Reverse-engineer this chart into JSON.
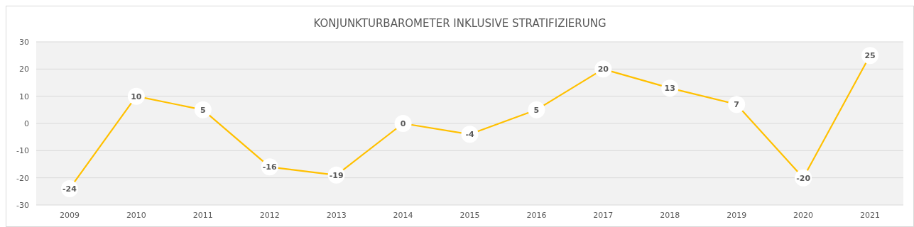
{
  "chart_data": {
    "type": "line",
    "title": "KONJUNKTURBAROMETER INKLUSIVE STRATIFIZIERUNG",
    "categories": [
      "2009",
      "2010",
      "2011",
      "2012",
      "2013",
      "2014",
      "2015",
      "2016",
      "2017",
      "2018",
      "2019",
      "2020",
      "2021"
    ],
    "series": [
      {
        "color": "#ffc000",
        "values": [
          -24,
          10,
          5,
          -16,
          -19,
          0,
          -4,
          5,
          20,
          13,
          7,
          -20,
          25
        ]
      }
    ],
    "ylim": [
      -30,
      30
    ],
    "yticks": [
      -30,
      -20,
      -10,
      0,
      10,
      20,
      30
    ],
    "grid": "y",
    "data_labels": true,
    "marker": "circle",
    "line_style": "solid"
  }
}
